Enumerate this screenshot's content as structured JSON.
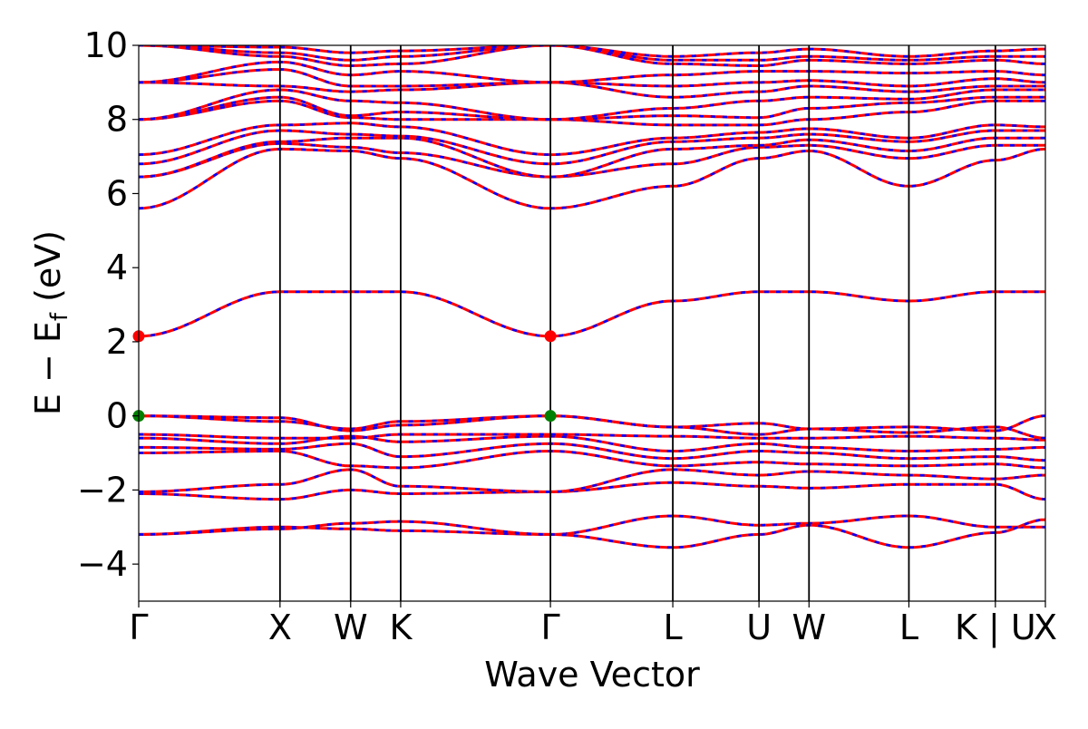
{
  "chart_data": {
    "type": "line",
    "title": "",
    "xlabel": "Wave Vector",
    "ylabel_main": "E − E",
    "ylabel_sub": "f",
    "ylabel_unit": " (eV)",
    "ylim": [
      -5,
      10
    ],
    "yticks": [
      -4,
      -2,
      0,
      2,
      4,
      6,
      8,
      10
    ],
    "ytick_labels": [
      "−4",
      "−2",
      "0",
      "2",
      "4",
      "6",
      "8",
      "10"
    ],
    "kpoints": [
      {
        "label": "Γ",
        "x": 0.0
      },
      {
        "label": "X",
        "x": 1.0
      },
      {
        "label": "W",
        "x": 1.5
      },
      {
        "label": "K",
        "x": 1.854
      },
      {
        "label": "Γ",
        "x": 2.914
      },
      {
        "label": "L",
        "x": 3.78
      },
      {
        "label": "U",
        "x": 4.39
      },
      {
        "label": "W",
        "x": 4.744
      },
      {
        "label": "L",
        "x": 5.451
      },
      {
        "label": "K | U",
        "x": 6.063
      },
      {
        "label": "X",
        "x": 6.417
      }
    ],
    "colors": {
      "solid": "#ff0000",
      "dashed": "#0000ff",
      "vbm": "#008000",
      "cbm": "#ff0000"
    },
    "series": [
      {
        "values": [
          -3.2,
          -3.0,
          -3.05,
          -3.1,
          -3.2,
          -2.7,
          -2.95,
          -2.9,
          -2.7,
          -3.0,
          -3.0
        ]
      },
      {
        "values": [
          -3.2,
          -3.05,
          -2.9,
          -2.85,
          -3.2,
          -3.55,
          -3.2,
          -2.95,
          -3.55,
          -3.15,
          -2.8
        ]
      },
      {
        "values": [
          -2.1,
          -2.25,
          -2.0,
          -2.1,
          -2.05,
          -1.8,
          -1.9,
          -1.95,
          -1.85,
          -1.85,
          -2.25
        ]
      },
      {
        "values": [
          -2.05,
          -1.85,
          -1.45,
          -1.9,
          -2.05,
          -1.45,
          -1.6,
          -1.5,
          -1.6,
          -1.7,
          -1.6
        ]
      },
      {
        "values": [
          -1.0,
          -0.95,
          -1.35,
          -1.4,
          -0.95,
          -1.35,
          -1.25,
          -1.3,
          -1.35,
          -1.3,
          -1.4
        ]
      },
      {
        "values": [
          -0.85,
          -0.9,
          -0.75,
          -1.1,
          -0.75,
          -1.15,
          -0.95,
          -1.0,
          -1.15,
          -1.1,
          -1.2
        ]
      },
      {
        "values": [
          -0.6,
          -0.75,
          -0.55,
          -0.7,
          -0.55,
          -0.95,
          -0.75,
          -0.85,
          -0.95,
          -0.9,
          -0.85
        ]
      },
      {
        "values": [
          -0.5,
          -0.6,
          -0.6,
          -0.5,
          -0.5,
          -0.55,
          -0.6,
          -0.6,
          -0.55,
          -0.6,
          -0.65
        ]
      },
      {
        "values": [
          0.0,
          -0.15,
          -0.35,
          -0.15,
          0.0,
          -0.3,
          -0.2,
          -0.35,
          -0.3,
          -0.4,
          0.0
        ]
      },
      {
        "values": [
          0.0,
          -0.05,
          -0.4,
          -0.25,
          0.0,
          -0.3,
          -0.5,
          -0.35,
          -0.45,
          -0.3,
          -0.6
        ]
      },
      {
        "values": [
          2.15,
          3.35,
          3.35,
          3.35,
          2.15,
          3.1,
          3.35,
          3.35,
          3.1,
          3.35,
          3.35
        ]
      },
      {
        "values": [
          5.6,
          7.2,
          7.15,
          6.95,
          5.6,
          6.2,
          6.95,
          7.15,
          6.2,
          6.9,
          7.2
        ]
      },
      {
        "values": [
          6.45,
          7.35,
          7.25,
          7.1,
          6.45,
          6.8,
          7.25,
          7.3,
          6.95,
          7.3,
          7.3
        ]
      },
      {
        "values": [
          6.45,
          7.4,
          7.5,
          7.5,
          6.45,
          7.2,
          7.3,
          7.45,
          7.15,
          7.5,
          7.5
        ]
      },
      {
        "values": [
          6.8,
          7.7,
          7.6,
          7.55,
          6.8,
          7.4,
          7.5,
          7.6,
          7.4,
          7.7,
          7.7
        ]
      },
      {
        "values": [
          7.05,
          7.85,
          7.9,
          7.8,
          7.05,
          7.5,
          7.65,
          7.75,
          7.5,
          7.85,
          7.8
        ]
      },
      {
        "values": [
          8.0,
          8.5,
          8.05,
          8.0,
          8.0,
          7.85,
          7.85,
          8.0,
          8.2,
          8.5,
          8.5
        ]
      },
      {
        "values": [
          8.0,
          8.6,
          8.1,
          8.2,
          8.0,
          8.1,
          8.05,
          8.3,
          8.45,
          8.6,
          8.6
        ]
      },
      {
        "values": [
          8.0,
          8.8,
          8.5,
          8.45,
          8.0,
          8.3,
          8.5,
          8.6,
          8.55,
          8.8,
          8.8
        ]
      },
      {
        "values": [
          9.0,
          8.9,
          8.75,
          8.8,
          9.0,
          8.6,
          8.75,
          8.9,
          8.75,
          8.9,
          8.9
        ]
      },
      {
        "values": [
          9.0,
          9.35,
          8.9,
          8.9,
          9.0,
          8.9,
          9.0,
          9.05,
          8.9,
          9.1,
          9.0
        ]
      },
      {
        "values": [
          9.0,
          9.55,
          9.2,
          9.3,
          9.0,
          9.2,
          9.3,
          9.3,
          9.25,
          9.3,
          9.2
        ]
      },
      {
        "values": [
          10.0,
          9.7,
          9.45,
          9.5,
          10.0,
          9.5,
          9.45,
          9.6,
          9.5,
          9.6,
          9.5
        ]
      },
      {
        "values": [
          10.0,
          9.8,
          9.6,
          9.7,
          10.0,
          9.6,
          9.6,
          9.7,
          9.6,
          9.7,
          9.7
        ]
      },
      {
        "values": [
          10.0,
          9.95,
          9.8,
          9.85,
          10.0,
          9.7,
          9.8,
          9.9,
          9.7,
          9.85,
          9.9
        ]
      }
    ],
    "markers": [
      {
        "type": "vbm",
        "x": 0.0,
        "y": 0.0
      },
      {
        "type": "vbm",
        "x": 2.914,
        "y": 0.0
      },
      {
        "type": "cbm",
        "x": 0.0,
        "y": 2.15
      },
      {
        "type": "cbm",
        "x": 2.914,
        "y": 2.15
      }
    ]
  }
}
